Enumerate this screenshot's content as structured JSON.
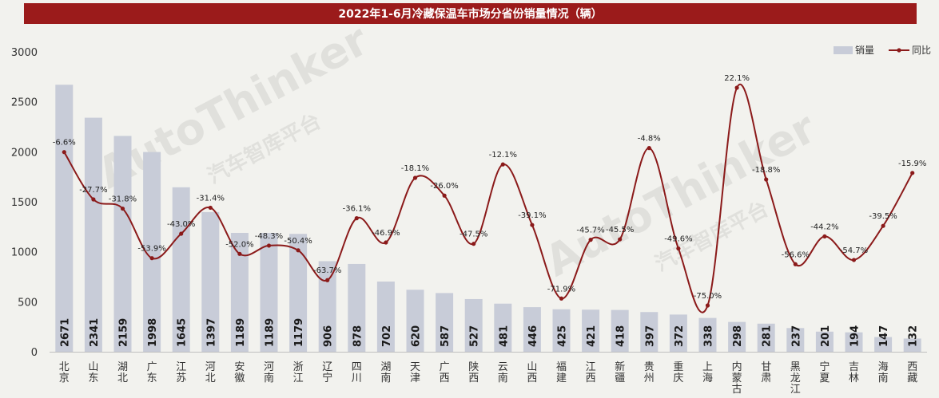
{
  "title": "2022年1-6月冷藏保温车市场分省份销量情况（辆）",
  "watermark": {
    "brand": "AutoThinker",
    "cn": "汽车智库平台"
  },
  "colors": {
    "bar": "#c8ccd8",
    "line": "#8b1a1a",
    "title_bg": "#9b1b1b"
  },
  "chart_data": {
    "type": "bar",
    "categories": [
      "北京",
      "山东",
      "湖北",
      "广东",
      "江苏",
      "河北",
      "安徽",
      "河南",
      "浙江",
      "辽宁",
      "四川",
      "湖南",
      "天津",
      "广西",
      "陕西",
      "云南",
      "山西",
      "福建",
      "江西",
      "新疆",
      "贵州",
      "重庆",
      "上海",
      "内蒙古",
      "甘肃",
      "黑龙江",
      "宁夏",
      "吉林",
      "海南",
      "西藏"
    ],
    "yticks": [
      "0",
      "500",
      "1000",
      "1500",
      "2000",
      "2500",
      "3000"
    ],
    "ylim": [
      0,
      3000
    ],
    "legend": {
      "position": "top-right",
      "bar": "销量",
      "line": "同比"
    },
    "series": [
      {
        "name": "销量",
        "kind": "bar",
        "values": [
          2671,
          2341,
          2159,
          1998,
          1645,
          1397,
          1189,
          1189,
          1179,
          906,
          878,
          702,
          620,
          587,
          527,
          481,
          446,
          425,
          421,
          418,
          397,
          372,
          338,
          298,
          281,
          237,
          201,
          194,
          147,
          132
        ],
        "labels": [
          "2671",
          "2341",
          "2159",
          "1998",
          "1645",
          "1397",
          "1189",
          "1189",
          "1179",
          "906",
          "878",
          "702",
          "620",
          "587",
          "527",
          "481",
          "446",
          "425",
          "421",
          "418",
          "397",
          "372",
          "338",
          "298",
          "281",
          "237",
          "201",
          "194",
          "147",
          "132"
        ]
      },
      {
        "name": "同比",
        "kind": "line",
        "values": [
          -6.6,
          -27.7,
          -31.8,
          -53.9,
          -43.0,
          -31.4,
          -52.0,
          -48.3,
          -50.4,
          -63.7,
          -36.1,
          -46.9,
          -18.1,
          -26.0,
          -47.5,
          -12.1,
          -39.1,
          -71.9,
          -45.7,
          -45.5,
          -4.8,
          -49.6,
          -75.0,
          22.1,
          -18.8,
          -56.6,
          -44.2,
          -54.7,
          -39.5,
          -15.9
        ],
        "labels": [
          "-6.6%",
          "-27.7%",
          "-31.8%",
          "-53.9%",
          "-43.0%",
          "-31.4%",
          "-52.0%",
          "-48.3%",
          "-50.4%",
          "-63.7%",
          "-36.1%",
          "-46.9%",
          "-18.1%",
          "-26.0%",
          "-47.5%",
          "-12.1%",
          "-39.1%",
          "-71.9%",
          "-45.7%",
          "-45.5%",
          "-4.8%",
          "-49.6%",
          "-75.0%",
          "22.1%",
          "-18.8%",
          "-56.6%",
          "-44.2%",
          "-54.7%",
          "-39.5%",
          "-15.9%"
        ]
      }
    ]
  }
}
